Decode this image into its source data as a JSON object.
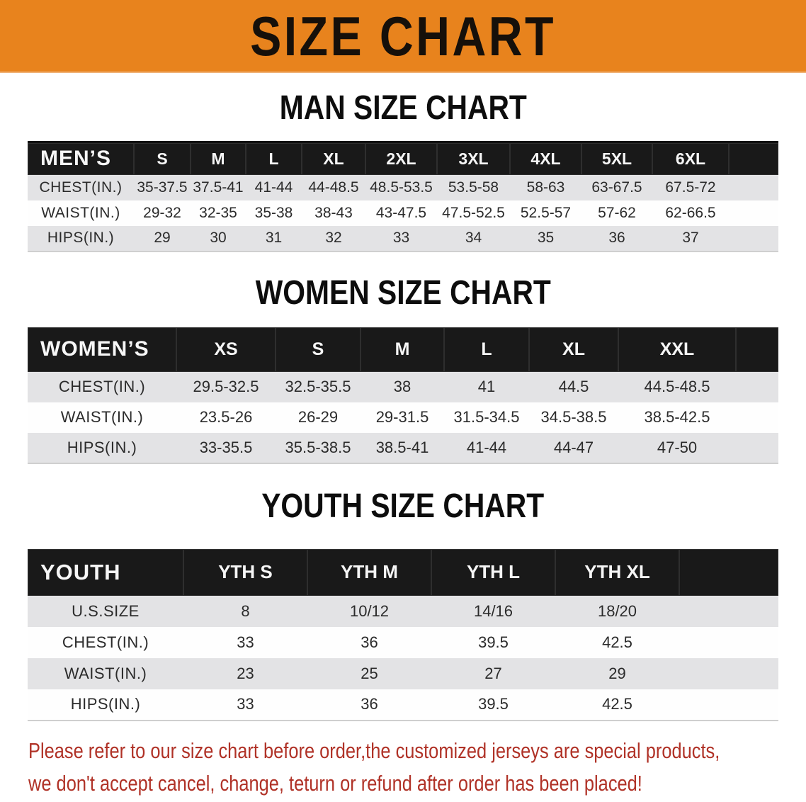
{
  "banner": {
    "title": "SIZE CHART"
  },
  "colors": {
    "banner_bg": "#e8831d",
    "banner_text": "#16100a",
    "table_header_bg": "#191919",
    "table_header_text": "#f6f6f6",
    "row_gray": "#e3e3e5",
    "row_white": "#fefefe",
    "cell_text": "#2b2b2b",
    "footer_red": "#b03227"
  },
  "sections": [
    {
      "heading": "MAN SIZE CHART"
    },
    {
      "heading": "WOMEN SIZE CHART"
    },
    {
      "heading": "YOUTH SIZE CHART"
    }
  ],
  "chart_data": [
    {
      "type": "table",
      "id": "mens-size-chart",
      "title": "MAN SIZE CHART",
      "columns": [
        "MEN’S",
        "S",
        "M",
        "L",
        "XL",
        "2XL",
        "3XL",
        "4XL",
        "5XL",
        "6XL"
      ],
      "rows": [
        [
          "CHEST(IN.)",
          "35-37.5",
          "37.5-41",
          "41-44",
          "44-48.5",
          "48.5-53.5",
          "53.5-58",
          "58-63",
          "63-67.5",
          "67.5-72"
        ],
        [
          "WAIST(IN.)",
          "29-32",
          "32-35",
          "35-38",
          "38-43",
          "43-47.5",
          "47.5-52.5",
          "52.5-57",
          "57-62",
          "62-66.5"
        ],
        [
          "HIPS(IN.)",
          "29",
          "30",
          "31",
          "32",
          "33",
          "34",
          "35",
          "36",
          "37"
        ]
      ]
    },
    {
      "type": "table",
      "id": "womens-size-chart",
      "title": "WOMEN SIZE CHART",
      "columns": [
        "WOMEN’S",
        "XS",
        "S",
        "M",
        "L",
        "XL",
        "XXL"
      ],
      "rows": [
        [
          "CHEST(IN.)",
          "29.5-32.5",
          "32.5-35.5",
          "38",
          "41",
          "44.5",
          "44.5-48.5"
        ],
        [
          "WAIST(IN.)",
          "23.5-26",
          "26-29",
          "29-31.5",
          "31.5-34.5",
          "34.5-38.5",
          "38.5-42.5"
        ],
        [
          "HIPS(IN.)",
          "33-35.5",
          "35.5-38.5",
          "38.5-41",
          "41-44",
          "44-47",
          "47-50"
        ]
      ]
    },
    {
      "type": "table",
      "id": "youth-size-chart",
      "title": "YOUTH SIZE CHART",
      "columns": [
        "YOUTH",
        "YTH S",
        "YTH M",
        "YTH L",
        "YTH XL"
      ],
      "rows": [
        [
          "U.S.SIZE",
          "8",
          "10/12",
          "14/16",
          "18/20"
        ],
        [
          "CHEST(IN.)",
          "33",
          "36",
          "39.5",
          "42.5"
        ],
        [
          "WAIST(IN.)",
          "23",
          "25",
          "27",
          "29"
        ],
        [
          "HIPS(IN.)",
          "33",
          "36",
          "39.5",
          "42.5"
        ]
      ]
    }
  ],
  "footer": {
    "line1": "Please refer to our size chart before order,the customized jerseys are special products,",
    "line2": "we don't accept cancel, change, teturn or refund after order has been placed!"
  }
}
